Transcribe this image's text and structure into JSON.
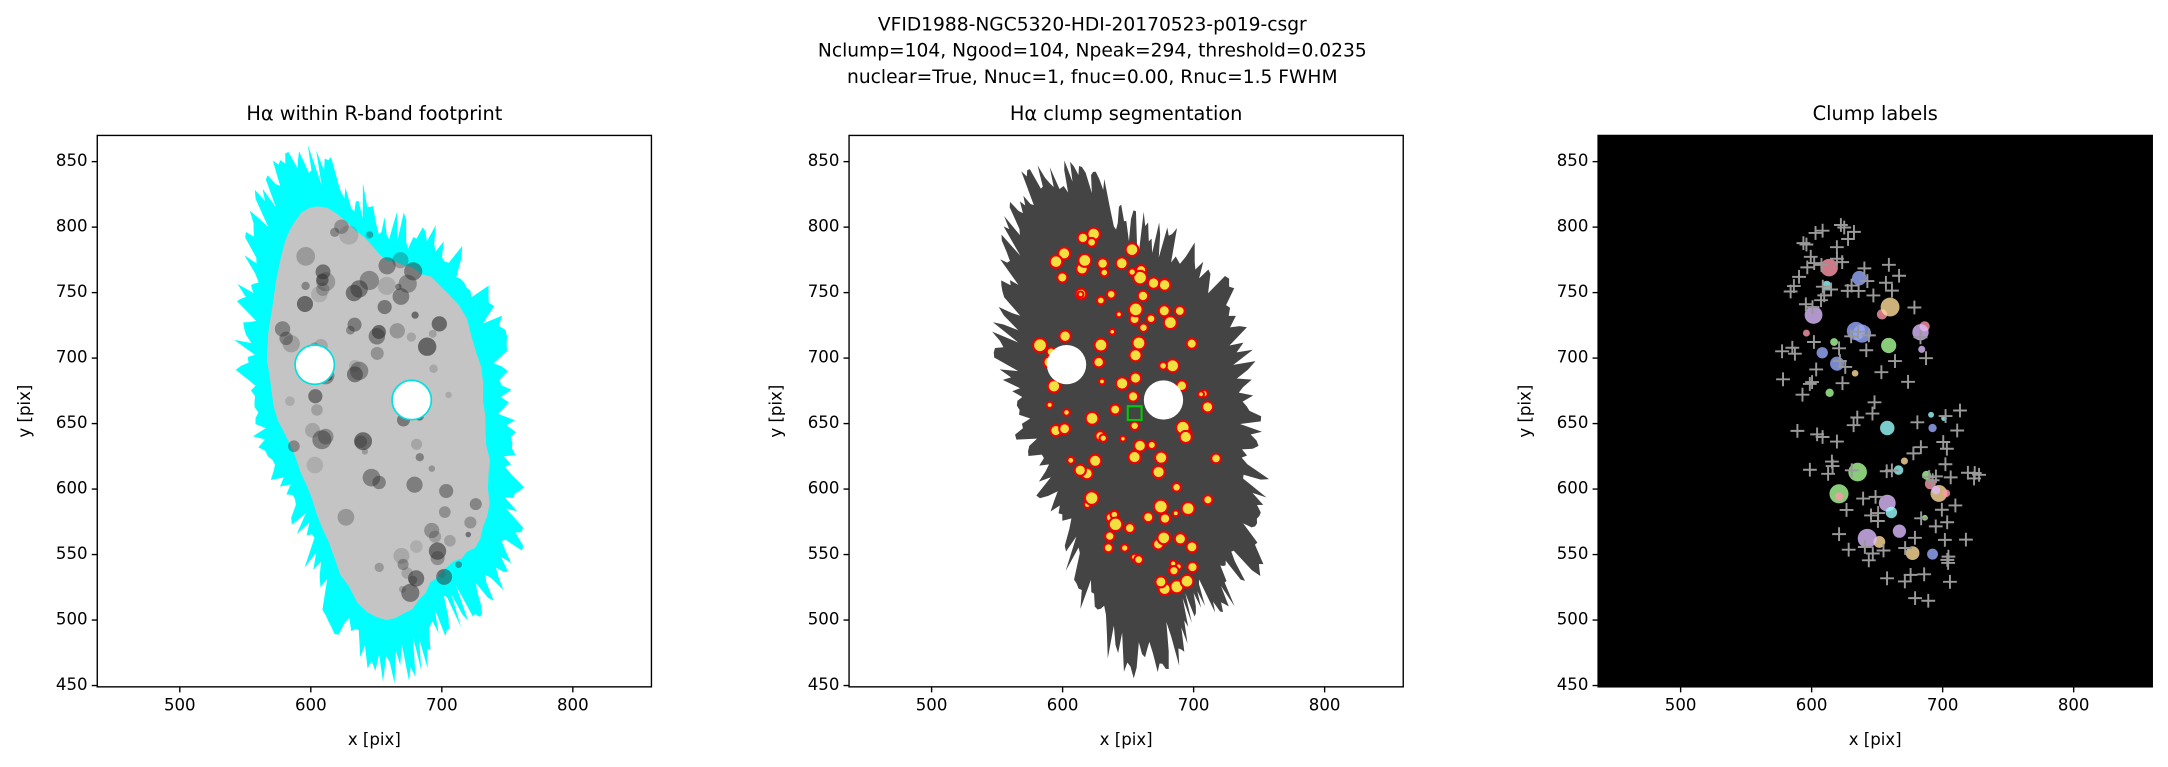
{
  "figure_title": [
    "VFID1988-NGC5320-HDI-20170523-p019-csgr",
    "Nclump=104, Ngood=104, Npeak=294, threshold=0.0235",
    "nuclear=True, Nnuc=1, fnuc=0.00, Rnuc=1.5 FWHM"
  ],
  "chart_data": [
    {
      "type": "image",
      "title": "Hα within R-band footprint",
      "x_label": "x [pix]",
      "y_label": "y [pix]",
      "xlim": [
        437,
        860
      ],
      "ylim": [
        449,
        870
      ],
      "xticks": [
        500,
        600,
        700,
        800
      ],
      "yticks": [
        450,
        500,
        550,
        600,
        650,
        700,
        750,
        800,
        850
      ]
    },
    {
      "type": "image",
      "title": "Hα clump segmentation",
      "x_label": "x [pix]",
      "y_label": "y [pix]",
      "xlim": [
        437,
        860
      ],
      "ylim": [
        449,
        870
      ],
      "xticks": [
        500,
        600,
        700,
        800
      ],
      "yticks": [
        450,
        500,
        550,
        600,
        650,
        700,
        750,
        800,
        850
      ]
    },
    {
      "type": "image",
      "title": "Clump labels",
      "x_label": "x [pix]",
      "y_label": "y [pix]",
      "xlim": [
        437,
        860
      ],
      "ylim": [
        449,
        870
      ],
      "xticks": [
        500,
        600,
        700,
        800
      ],
      "yticks": [
        450,
        500,
        550,
        600,
        650,
        700,
        750,
        800,
        850
      ]
    }
  ]
}
